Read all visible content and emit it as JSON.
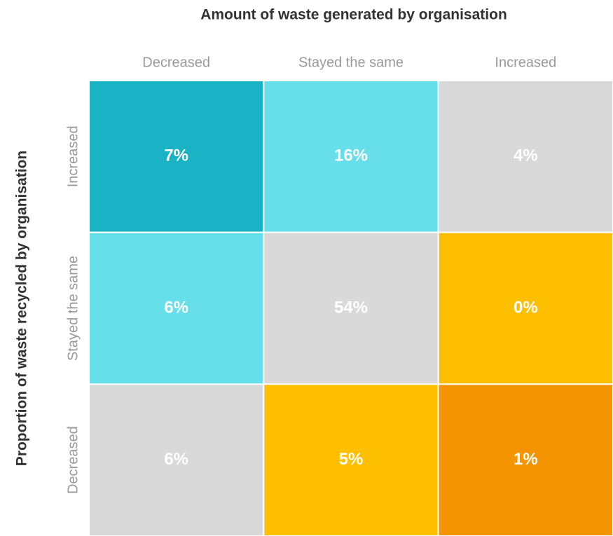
{
  "chart_data": {
    "type": "heatmap",
    "title": "Amount of waste generated by organisation",
    "ylabel": "Proportion of waste recycled by organisation",
    "x_categories": [
      "Decreased",
      "Stayed the same",
      "Increased"
    ],
    "y_categories": [
      "Increased",
      "Stayed the same",
      "Decreased"
    ],
    "values": [
      [
        7,
        16,
        4
      ],
      [
        6,
        54,
        0
      ],
      [
        6,
        5,
        1
      ]
    ],
    "value_labels": [
      [
        "7%",
        "16%",
        "4%"
      ],
      [
        "6%",
        "54%",
        "0%"
      ],
      [
        "6%",
        "5%",
        "1%"
      ]
    ],
    "colors": [
      [
        "#1ab3c5",
        "#67dfeb",
        "#d9d9d9"
      ],
      [
        "#67dfeb",
        "#d9d9d9",
        "#fdbf00"
      ],
      [
        "#d9d9d9",
        "#fdbf00",
        "#f39400"
      ]
    ],
    "label_color": "#ffffff"
  }
}
